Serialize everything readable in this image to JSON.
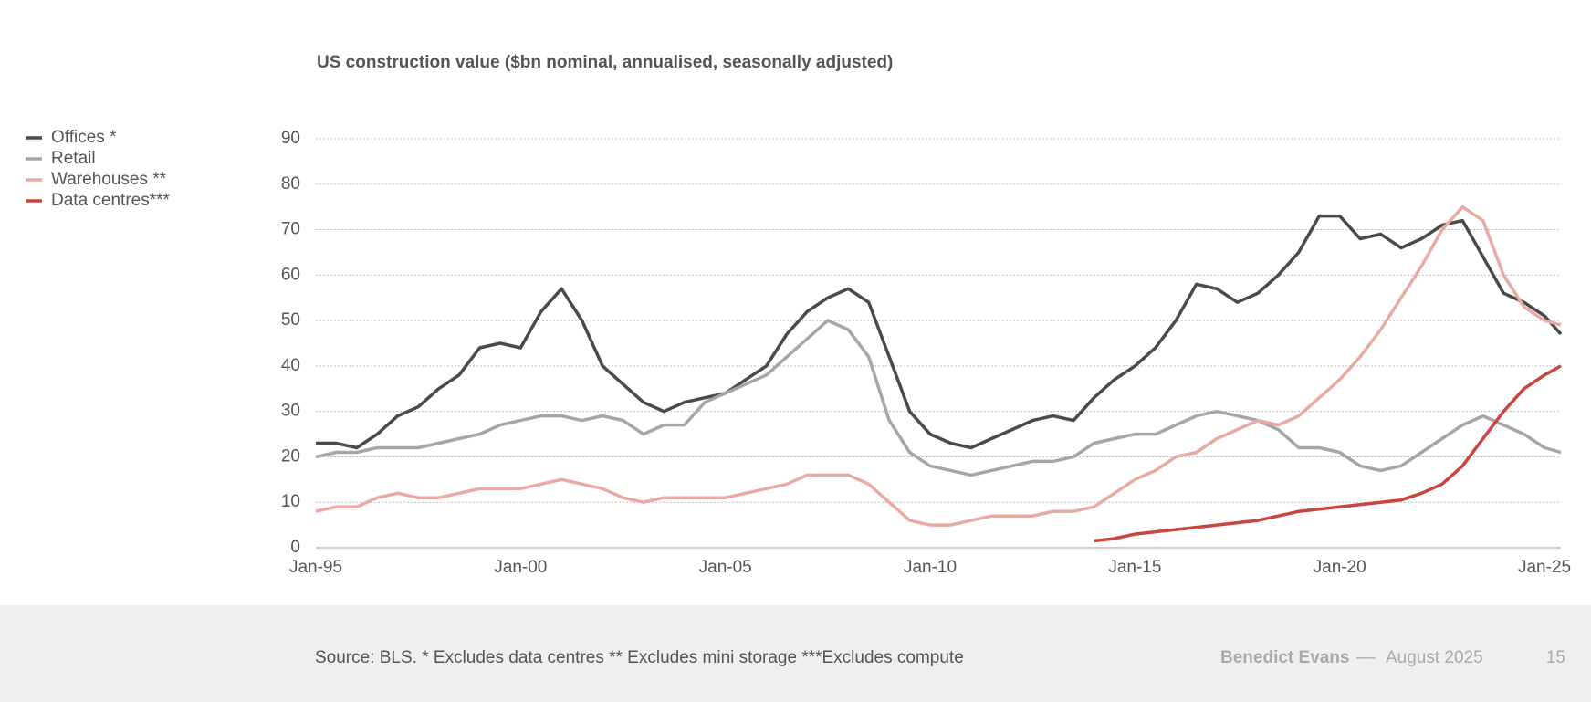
{
  "chart_data": {
    "type": "line",
    "title": "US construction value ($bn nominal, annualised, seasonally adjusted)",
    "x": [
      1995,
      1995.5,
      1996,
      1996.5,
      1997,
      1997.5,
      1998,
      1998.5,
      1999,
      1999.5,
      2000,
      2000.5,
      2001,
      2001.5,
      2002,
      2002.5,
      2003,
      2003.5,
      2004,
      2004.5,
      2005,
      2005.5,
      2006,
      2006.5,
      2007,
      2007.5,
      2008,
      2008.5,
      2009,
      2009.5,
      2010,
      2010.5,
      2011,
      2011.5,
      2012,
      2012.5,
      2013,
      2013.5,
      2014,
      2014.5,
      2015,
      2015.5,
      2016,
      2016.5,
      2017,
      2017.5,
      2018,
      2018.5,
      2019,
      2019.5,
      2020,
      2020.5,
      2021,
      2021.5,
      2022,
      2022.5,
      2023,
      2023.5,
      2024,
      2024.5,
      2025,
      2025.4
    ],
    "series": [
      {
        "name": "Offices *",
        "color": "#4a4a4a",
        "values": [
          23,
          23,
          22,
          25,
          29,
          31,
          35,
          38,
          44,
          45,
          44,
          52,
          57,
          50,
          40,
          36,
          32,
          30,
          32,
          33,
          34,
          37,
          40,
          47,
          52,
          55,
          57,
          54,
          42,
          30,
          25,
          23,
          22,
          24,
          26,
          28,
          29,
          28,
          33,
          37,
          40,
          44,
          50,
          58,
          57,
          54,
          56,
          60,
          65,
          73,
          73,
          68,
          69,
          66,
          68,
          71,
          72,
          64,
          56,
          54,
          51,
          47
        ]
      },
      {
        "name": "Retail",
        "color": "#a6a6a6",
        "values": [
          20,
          21,
          21,
          22,
          22,
          22,
          23,
          24,
          25,
          27,
          28,
          29,
          29,
          28,
          29,
          28,
          25,
          27,
          27,
          32,
          34,
          36,
          38,
          42,
          46,
          50,
          48,
          42,
          28,
          21,
          18,
          17,
          16,
          17,
          18,
          19,
          19,
          20,
          23,
          24,
          25,
          25,
          27,
          29,
          30,
          29,
          28,
          26,
          22,
          22,
          21,
          18,
          17,
          18,
          21,
          24,
          27,
          29,
          27,
          25,
          22,
          21
        ]
      },
      {
        "name": "Warehouses **",
        "color": "#e8aaa4",
        "values": [
          8,
          9,
          9,
          11,
          12,
          11,
          11,
          12,
          13,
          13,
          13,
          14,
          15,
          14,
          13,
          11,
          10,
          11,
          11,
          11,
          11,
          12,
          13,
          14,
          16,
          16,
          16,
          14,
          10,
          6,
          5,
          5,
          6,
          7,
          7,
          7,
          8,
          8,
          9,
          12,
          15,
          17,
          20,
          21,
          24,
          26,
          28,
          27,
          29,
          33,
          37,
          42,
          48,
          55,
          62,
          70,
          75,
          72,
          60,
          53,
          50,
          49
        ]
      },
      {
        "name": "Data centres***",
        "color": "#c9463d",
        "values": [
          null,
          null,
          null,
          null,
          null,
          null,
          null,
          null,
          null,
          null,
          null,
          null,
          null,
          null,
          null,
          null,
          null,
          null,
          null,
          null,
          null,
          null,
          null,
          null,
          null,
          null,
          null,
          null,
          null,
          null,
          null,
          null,
          null,
          null,
          null,
          null,
          null,
          null,
          1.5,
          2,
          3,
          3.5,
          4,
          4.5,
          5,
          5.5,
          6,
          7,
          8,
          8.5,
          9,
          9.5,
          10,
          10.5,
          12,
          14,
          18,
          24,
          30,
          35,
          38,
          40
        ]
      }
    ],
    "xlim": [
      1995,
      2025.4
    ],
    "xticks": [
      {
        "value": 1995,
        "label": "Jan-95"
      },
      {
        "value": 2000,
        "label": "Jan-00"
      },
      {
        "value": 2005,
        "label": "Jan-05"
      },
      {
        "value": 2010,
        "label": "Jan-10"
      },
      {
        "value": 2015,
        "label": "Jan-15"
      },
      {
        "value": 2020,
        "label": "Jan-20"
      },
      {
        "value": 2025,
        "label": "Jan-25"
      }
    ],
    "ylim": [
      0,
      90
    ],
    "yticks": [
      0,
      10,
      20,
      30,
      40,
      50,
      60,
      70,
      80,
      90
    ],
    "grid": true,
    "legend": "top-left"
  },
  "footer": {
    "source": "Source: BLS. * Excludes data centres ** Excludes mini storage ***Excludes compute",
    "author": "Benedict Evans",
    "separator": "––",
    "date": "August 2025",
    "page": "15"
  }
}
